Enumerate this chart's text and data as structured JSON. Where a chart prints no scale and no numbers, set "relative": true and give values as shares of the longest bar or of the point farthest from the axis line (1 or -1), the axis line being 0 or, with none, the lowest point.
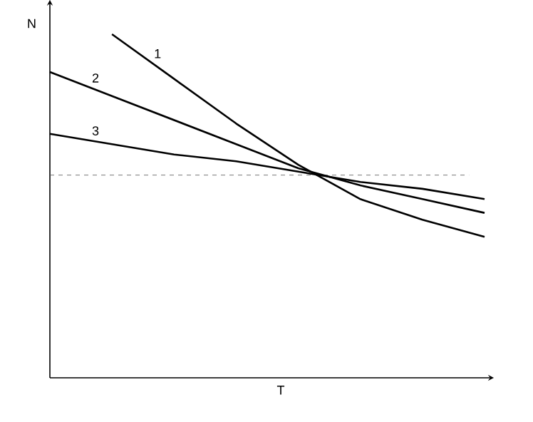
{
  "chart_data": {
    "type": "line",
    "relative": true,
    "xlabel": "T",
    "ylabel": "N",
    "categories": [
      null,
      null,
      null,
      null,
      null,
      null,
      null,
      null
    ],
    "series": [
      {
        "name": "1",
        "color": "#000000",
        "values": [
          null,
          1,
          0.87,
          0.74,
          0.62,
          0.52,
          0.46,
          0.41
        ]
      },
      {
        "name": "2",
        "color": "#000000",
        "values": [
          0.89,
          0.82,
          0.75,
          0.68,
          0.61,
          0.56,
          0.52,
          0.48
        ]
      },
      {
        "name": "3",
        "color": "#000000",
        "values": [
          0.71,
          0.68,
          0.65,
          0.63,
          0.6,
          0.57,
          0.55,
          0.52
        ]
      }
    ],
    "ref_lines": [
      {
        "axis": "y",
        "value": 0.59,
        "color": "#555555",
        "line_style": "dashed"
      }
    ],
    "tick_labels": false,
    "marker": "none",
    "line_style": "solid"
  }
}
